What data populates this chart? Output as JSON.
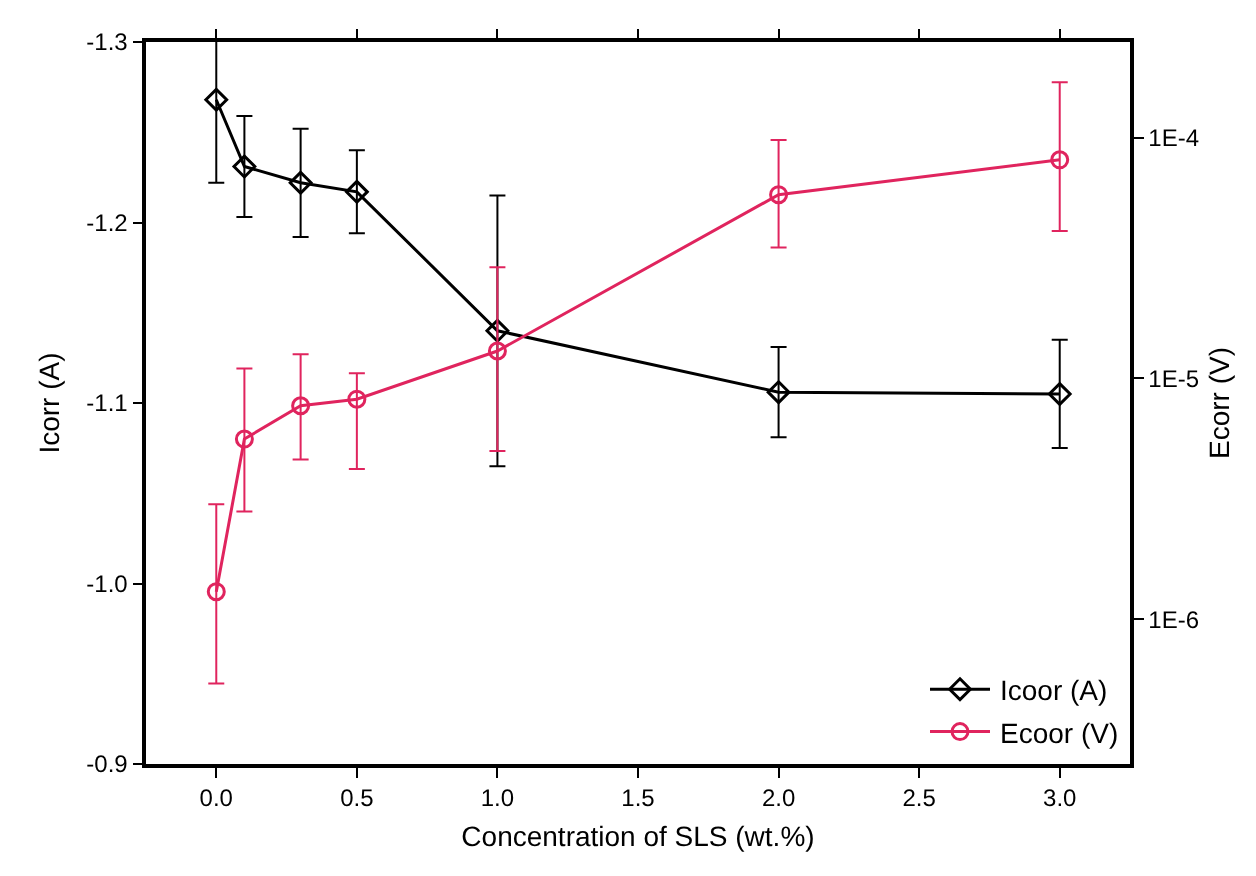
{
  "chart_data": {
    "type": "line",
    "xlabel": "Concentration of SLS (wt.%)",
    "ylabel": "Icorr (A)",
    "y2label": "Ecorr (V)",
    "x": [
      0,
      0.1,
      0.3,
      0.5,
      1,
      2,
      3
    ],
    "series": [
      {
        "name": "Icoor (A)",
        "color": "#000000",
        "marker": "diamond",
        "values": [
          -1.268,
          -1.231,
          -1.222,
          -1.217,
          -1.14,
          -1.106,
          -1.105
        ],
        "errors": [
          0.046,
          0.028,
          0.03,
          0.023,
          0.075,
          0.025,
          0.03
        ]
      },
      {
        "name": "Ecoor (V)",
        "color": "#e0245e",
        "marker": "circle",
        "axis": "y2",
        "values": [
          1.3e-06,
          5.6e-06,
          7.7e-06,
          8.2e-06,
          1.3e-05,
          5.8e-05,
          8.1e-05
        ],
        "errors": [
          [
            5.4e-07,
            3e-06
          ],
          [
            2.8e-06,
            1.1e-05
          ],
          [
            4.6e-06,
            1.26e-05
          ],
          [
            4.2e-06,
            1.05e-05
          ],
          [
            5e-06,
            2.9e-05
          ],
          [
            3.5e-05,
            9.8e-05
          ],
          [
            4.1e-05,
            0.00017
          ]
        ]
      }
    ],
    "xlim": [
      -0.25,
      3.25
    ],
    "xticks": [
      {
        "value": 0,
        "label": "0.0"
      },
      0.5,
      {
        "value": 1,
        "label": "1.0"
      },
      1.5,
      {
        "value": 2,
        "label": "2.0"
      },
      2.5,
      {
        "value": 3,
        "label": "3.0"
      }
    ],
    "ylim": [
      -0.9,
      -1.3
    ],
    "yticks": [
      -1.3,
      -1.2,
      -1.1,
      {
        "value": -1,
        "label": "-1.0"
      },
      -0.9
    ],
    "log": "y2",
    "y2lim": [
      2.5e-07,
      0.00025
    ],
    "y2ticks": [
      {
        "value": 1e-06,
        "label": "1E-6"
      },
      {
        "value": 1e-05,
        "label": "1E-5"
      },
      {
        "value": 0.0001,
        "label": "1E-4"
      }
    ],
    "grid": false,
    "legend": "bottom right",
    "line_style": "solid"
  }
}
